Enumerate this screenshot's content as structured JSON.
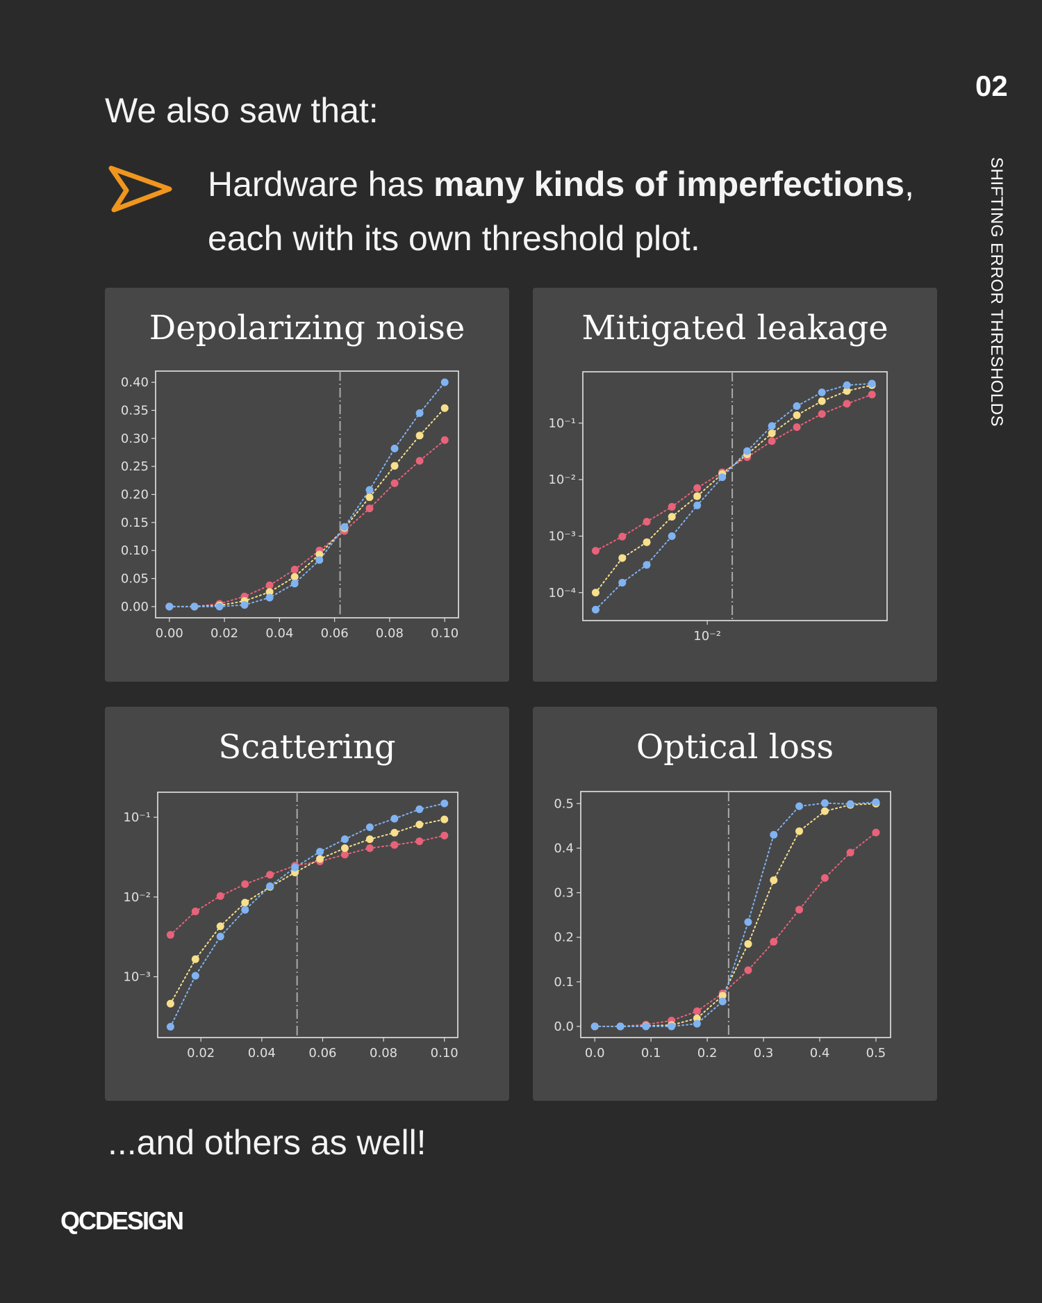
{
  "header": {
    "intro": "We also saw that:",
    "bullet_prefix": "Hardware has ",
    "bullet_bold": "many kinds of imperfections",
    "bullet_suffix": ",",
    "bullet_line2": "each with its own threshold plot.",
    "page_number": "02",
    "section_label": "SHIFTING ERROR THRESHOLDS",
    "arrow_icon": "arrow-outline-icon",
    "accent_color": "#f0961e"
  },
  "footer": {
    "outro": "...and others as well!",
    "logo": "QCDESIGN"
  },
  "colors": {
    "background": "#2a2a2a",
    "panel": "#474747",
    "red": "#e8637a",
    "yellow": "#f7df8c",
    "blue": "#80b3f2",
    "threshold": "#aaaaaa"
  },
  "chart_data": [
    {
      "type": "line",
      "title": "Depolarizing noise",
      "xscale": "linear",
      "yscale": "linear",
      "xlim": [
        -0.005,
        0.105
      ],
      "ylim": [
        -0.02,
        0.42
      ],
      "xticks": [
        0,
        0.02,
        0.04,
        0.06,
        0.08,
        0.1
      ],
      "xticklabels": [
        "0.00",
        "0.02",
        "0.04",
        "0.06",
        "0.08",
        "0.10"
      ],
      "yticks": [
        0,
        0.05,
        0.1,
        0.15,
        0.2,
        0.25,
        0.3,
        0.35,
        0.4
      ],
      "yticklabels": [
        "0.00",
        "0.05",
        "0.10",
        "0.15",
        "0.20",
        "0.25",
        "0.30",
        "0.35",
        "0.40"
      ],
      "threshold": 0.062,
      "x": [
        0,
        0.0091,
        0.0182,
        0.0273,
        0.0364,
        0.0455,
        0.0545,
        0.0636,
        0.0727,
        0.0818,
        0.0909,
        0.1
      ],
      "series": [
        {
          "color": "red",
          "values": [
            0,
            0,
            0.005,
            0.018,
            0.038,
            0.066,
            0.1,
            0.135,
            0.175,
            0.22,
            0.26,
            0.297
          ]
        },
        {
          "color": "yellow",
          "values": [
            0,
            0,
            0.002,
            0.01,
            0.026,
            0.053,
            0.093,
            0.14,
            0.195,
            0.251,
            0.305,
            0.354
          ]
        },
        {
          "color": "blue",
          "values": [
            0,
            0,
            0,
            0.003,
            0.016,
            0.041,
            0.083,
            0.142,
            0.208,
            0.282,
            0.345,
            0.4
          ]
        }
      ]
    },
    {
      "type": "line",
      "title": "Mitigated leakage",
      "xscale": "log",
      "yscale": "log",
      "xlim": [
        0.00271,
        0.066
      ],
      "ylim": [
        3.2e-05,
        0.81
      ],
      "xticks": [
        0.01
      ],
      "xticklabels": [
        "10⁻²"
      ],
      "yticks": [
        0.1,
        0.01,
        0.001,
        0.0001
      ],
      "yticklabels": [
        "10⁻¹",
        "10⁻²",
        "10⁻³",
        "10⁻⁴"
      ],
      "threshold": 0.013,
      "x": [
        0.0031,
        0.0041,
        0.0053,
        0.0069,
        0.009,
        0.0117,
        0.0152,
        0.0197,
        0.0256,
        0.0333,
        0.0433,
        0.0563
      ],
      "series": [
        {
          "color": "red",
          "values": [
            0.00055,
            0.00098,
            0.0018,
            0.0033,
            0.0071,
            0.0135,
            0.025,
            0.048,
            0.085,
            0.145,
            0.22,
            0.32
          ]
        },
        {
          "color": "yellow",
          "values": [
            0.0001,
            0.00041,
            0.00078,
            0.0022,
            0.0051,
            0.0126,
            0.028,
            0.066,
            0.138,
            0.245,
            0.37,
            0.47
          ]
        },
        {
          "color": "blue",
          "values": [
            5e-05,
            0.00015,
            0.00031,
            0.001,
            0.0035,
            0.011,
            0.032,
            0.089,
            0.2,
            0.35,
            0.47,
            0.5
          ]
        }
      ]
    },
    {
      "type": "line",
      "title": "Scattering",
      "xscale": "linear",
      "yscale": "log",
      "xlim": [
        0.0058,
        0.1044
      ],
      "ylim": [
        0.000173,
        0.206
      ],
      "xticks": [
        0.02,
        0.04,
        0.06,
        0.08,
        0.1
      ],
      "xticklabels": [
        "0.02",
        "0.04",
        "0.06",
        "0.08",
        "0.10"
      ],
      "yticks": [
        0.1,
        0.01,
        0.001
      ],
      "yticklabels": [
        "10⁻¹",
        "10⁻²",
        "10⁻³"
      ],
      "threshold": 0.0516,
      "x": [
        0.01,
        0.0182,
        0.0264,
        0.0345,
        0.0427,
        0.0509,
        0.0591,
        0.0673,
        0.0755,
        0.0836,
        0.0918,
        0.1
      ],
      "series": [
        {
          "color": "red",
          "values": [
            0.00335,
            0.0066,
            0.0103,
            0.0145,
            0.019,
            0.0247,
            0.028,
            0.034,
            0.041,
            0.045,
            0.05,
            0.059
          ]
        },
        {
          "color": "yellow",
          "values": [
            0.00046,
            0.00166,
            0.0043,
            0.0085,
            0.0134,
            0.0203,
            0.03,
            0.041,
            0.053,
            0.064,
            0.081,
            0.094
          ]
        },
        {
          "color": "blue",
          "values": [
            0.000236,
            0.00103,
            0.0032,
            0.0069,
            0.0137,
            0.0234,
            0.037,
            0.053,
            0.075,
            0.096,
            0.126,
            0.149
          ]
        }
      ]
    },
    {
      "type": "line",
      "title": "Optical loss",
      "xscale": "linear",
      "yscale": "linear",
      "xlim": [
        -0.025,
        0.526
      ],
      "ylim": [
        -0.025,
        0.527
      ],
      "xticks": [
        0,
        0.1,
        0.2,
        0.3,
        0.4,
        0.5
      ],
      "xticklabels": [
        "0.0",
        "0.1",
        "0.2",
        "0.3",
        "0.4",
        "0.5"
      ],
      "yticks": [
        0,
        0.1,
        0.2,
        0.3,
        0.4,
        0.5
      ],
      "yticklabels": [
        "0.0",
        "0.1",
        "0.2",
        "0.3",
        "0.4",
        "0.5"
      ],
      "threshold": 0.238,
      "x": [
        0,
        0.0455,
        0.0909,
        0.1364,
        0.1818,
        0.2273,
        0.2727,
        0.3182,
        0.3636,
        0.4091,
        0.4545,
        0.5
      ],
      "series": [
        {
          "color": "red",
          "values": [
            0,
            0,
            0.004,
            0.013,
            0.034,
            0.074,
            0.126,
            0.19,
            0.262,
            0.333,
            0.39,
            0.435
          ]
        },
        {
          "color": "yellow",
          "values": [
            0,
            0,
            0.001,
            0.003,
            0.018,
            0.069,
            0.185,
            0.328,
            0.438,
            0.483,
            0.497,
            0.5
          ]
        },
        {
          "color": "blue",
          "values": [
            0,
            0,
            0,
            0,
            0.006,
            0.056,
            0.234,
            0.43,
            0.494,
            0.501,
            0.499,
            0.503
          ]
        }
      ]
    }
  ]
}
